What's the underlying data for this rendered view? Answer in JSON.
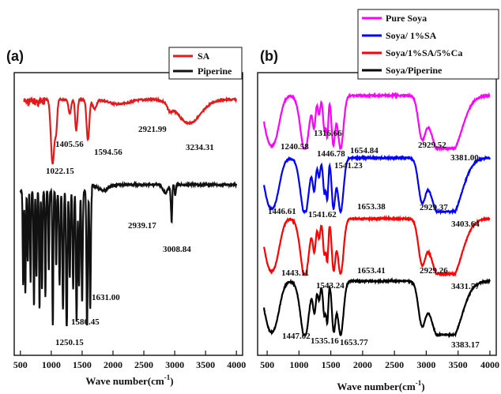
{
  "chart_data": [
    {
      "panel_label": "(a)",
      "type": "line",
      "xlabel": "Wave number(cm",
      "xlabel_sup": "-1",
      "xlabel_close": ")",
      "xlim": [
        400,
        4100
      ],
      "xticks": [
        500,
        1000,
        1500,
        2000,
        2500,
        3000,
        3500,
        4000
      ],
      "grid": false,
      "yticks_shown": false,
      "legend_position": "top-right",
      "series": [
        {
          "name": "SA",
          "color": "#e31a1c",
          "offset": 1.7,
          "peaks": [
            {
              "x": 1022.15,
              "label": "1022.15",
              "depth": 0.55,
              "w": 22
            },
            {
              "x": 1405.56,
              "label": "1405.56",
              "depth": 0.35,
              "w": 18
            },
            {
              "x": 1594.56,
              "label": "1594.56",
              "depth": 0.42,
              "w": 22
            },
            {
              "x": 2921.99,
              "label": "2921.99",
              "depth": 0.08,
              "w": 30
            },
            {
              "x": 3234.31,
              "label": "3234.31",
              "depth": 0.22,
              "w": 180
            }
          ]
        },
        {
          "name": "Piperine",
          "color": "#111111",
          "offset": 0.9,
          "peaks": [
            {
              "x": 1250.15,
              "label": "1250.15",
              "depth": 0.85,
              "w": 12
            },
            {
              "x": 1580.45,
              "label": "1580.45",
              "depth": 0.72,
              "w": 14
            },
            {
              "x": 1631.0,
              "label": "1631.00",
              "depth": 0.6,
              "w": 12
            },
            {
              "x": 2939.17,
              "label": "2939.17",
              "depth": 0.12,
              "w": 14
            },
            {
              "x": 3008.84,
              "label": "3008.84",
              "depth": 0.22,
              "w": 14
            }
          ]
        }
      ],
      "annotations": [
        "1022.15",
        "1405.56",
        "1594.56",
        "2921.99",
        "3234.31",
        "2939.17",
        "3008.84",
        "1631.00",
        "1580.45",
        "1250.15"
      ]
    },
    {
      "panel_label": "(b)",
      "type": "line",
      "xlabel": "Wave number(cm",
      "xlabel_sup": "-1",
      "xlabel_close": ")",
      "xlim": [
        350,
        4100
      ],
      "xticks": [
        500,
        1000,
        1500,
        2000,
        2500,
        3000,
        3500,
        4000
      ],
      "grid": false,
      "yticks_shown": false,
      "legend_position": "top-right",
      "series": [
        {
          "name": "Pure Soya",
          "color": "#ff00ff",
          "peak_labels": [
            "1316.66",
            "1240.58",
            "1446.78",
            "1654.84",
            "2929.52",
            "3381.00"
          ]
        },
        {
          "name": "Soya/ 1%SA",
          "color": "#0000ff",
          "peak_labels": [
            "1541.23",
            "1446.61",
            "1541.62",
            "1653.38",
            "2929.37",
            "3403.64"
          ]
        },
        {
          "name": "Soya/1%SA/5%Ca",
          "color": "#ff0000",
          "peak_labels": [
            "1443.11",
            "1653.41",
            "1543.24",
            "2929.26",
            "3431.57"
          ]
        },
        {
          "name": "Soya/Piperine",
          "color": "#000000",
          "peak_labels": [
            "1447.02",
            "1535.16",
            "1653.77",
            "3383.17"
          ]
        }
      ]
    }
  ]
}
